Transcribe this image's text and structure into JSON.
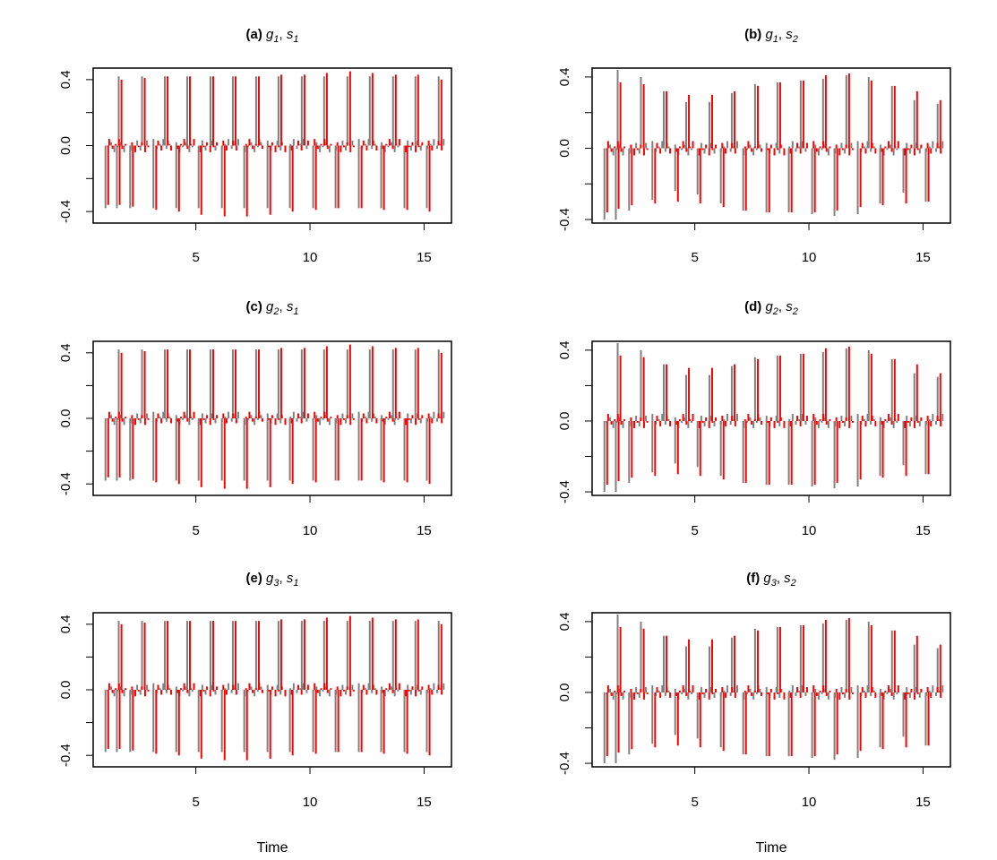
{
  "x_axis_label": "Time",
  "colors": {
    "series_a": "#808080",
    "series_b": "#ff0000",
    "axis": "#000000",
    "background": "#ffffff"
  },
  "chart_data": [
    {
      "type": "bar",
      "title": {
        "label": "(a)",
        "g": "g",
        "g_sub": "1",
        "s": "s",
        "s_sub": "1"
      },
      "xlabel": "Time",
      "ylabel": "",
      "xlim": [
        0.5,
        16.2
      ],
      "ylim": [
        -0.47,
        0.47
      ],
      "x_ticks": [
        5,
        10,
        15
      ],
      "y_ticks": [
        -0.4,
        0.0,
        0.4
      ],
      "y_tick_labels": [
        "-0.4",
        "0.0",
        "0.4"
      ],
      "period": 7,
      "series": [
        {
          "color": "#808080",
          "spike_x": [
            1.04,
            1.62,
            2.64,
            3.64,
            4.62,
            5.64,
            6.62,
            7.64,
            8.62,
            9.64,
            10.62,
            11.64,
            12.62,
            13.64,
            14.62,
            15.64
          ],
          "spike_values": [
            -0.38,
            0.42,
            0.42,
            0.42,
            0.42,
            0.42,
            0.42,
            0.42,
            0.42,
            0.42,
            0.42,
            0.42,
            0.42,
            0.42,
            0.42,
            0.42
          ],
          "mid_spike_values": [
            -0.38,
            -0.38,
            -0.38,
            -0.38,
            -0.38,
            -0.38,
            -0.38,
            -0.38,
            -0.38,
            -0.38,
            -0.38,
            -0.38,
            -0.38,
            -0.38,
            -0.38
          ]
        },
        {
          "color": "#ff0000",
          "spike_x": [
            1.16,
            1.74,
            2.76,
            3.76,
            4.74,
            5.76,
            6.74,
            7.76,
            8.74,
            9.76,
            10.74,
            11.76,
            12.74,
            13.76,
            14.74,
            15.76
          ],
          "spike_values": [
            -0.36,
            0.4,
            0.41,
            0.42,
            0.42,
            0.42,
            0.42,
            0.42,
            0.43,
            0.43,
            0.44,
            0.45,
            0.44,
            0.43,
            0.43,
            0.4
          ],
          "mid_spike_values": [
            -0.36,
            -0.37,
            -0.39,
            -0.4,
            -0.42,
            -0.43,
            -0.43,
            -0.42,
            -0.4,
            -0.39,
            -0.38,
            -0.38,
            -0.39,
            -0.39,
            -0.4
          ]
        }
      ]
    },
    {
      "type": "bar",
      "title": {
        "label": "(b)",
        "g": "g",
        "g_sub": "1",
        "s": "s",
        "s_sub": "2"
      },
      "xlabel": "Time",
      "ylabel": "",
      "xlim": [
        0.5,
        16.2
      ],
      "ylim": [
        -0.42,
        0.45
      ],
      "x_ticks": [
        5,
        10,
        15
      ],
      "y_ticks": [
        -0.4,
        0.0,
        0.4
      ],
      "y_tick_labels": [
        "-0.4",
        "0.0",
        "0.4"
      ],
      "period": 7,
      "series": [
        {
          "color": "#808080",
          "spike_x": [
            1.04,
            1.62,
            2.64,
            3.64,
            4.62,
            5.64,
            6.62,
            7.64,
            8.62,
            9.64,
            10.62,
            11.64,
            12.62,
            13.64,
            14.62,
            15.64
          ],
          "spike_values": [
            -0.4,
            0.44,
            0.4,
            0.32,
            0.26,
            0.26,
            0.31,
            0.36,
            0.37,
            0.38,
            0.39,
            0.41,
            0.4,
            0.35,
            0.27,
            0.25
          ],
          "mid_spike_values": [
            -0.4,
            -0.35,
            -0.29,
            -0.24,
            -0.26,
            -0.31,
            -0.35,
            -0.36,
            -0.36,
            -0.37,
            -0.38,
            -0.37,
            -0.31,
            -0.25,
            -0.3
          ]
        },
        {
          "color": "#ff0000",
          "spike_x": [
            1.16,
            1.74,
            2.76,
            3.76,
            4.74,
            5.76,
            6.74,
            7.76,
            8.74,
            9.76,
            10.74,
            11.76,
            12.74,
            13.76,
            14.74,
            15.76
          ],
          "spike_values": [
            -0.36,
            0.37,
            0.36,
            0.32,
            0.3,
            0.3,
            0.32,
            0.35,
            0.37,
            0.38,
            0.41,
            0.42,
            0.38,
            0.35,
            0.32,
            0.27
          ],
          "mid_spike_values": [
            -0.34,
            -0.32,
            -0.31,
            -0.3,
            -0.31,
            -0.33,
            -0.35,
            -0.36,
            -0.36,
            -0.36,
            -0.35,
            -0.33,
            -0.32,
            -0.31,
            -0.3
          ]
        }
      ]
    },
    {
      "type": "bar",
      "title": {
        "label": "(c)",
        "g": "g",
        "g_sub": "2",
        "s": "s",
        "s_sub": "1"
      },
      "xlabel": "Time",
      "ylabel": "",
      "xlim": [
        0.5,
        16.2
      ],
      "ylim": [
        -0.47,
        0.47
      ],
      "x_ticks": [
        5,
        10,
        15
      ],
      "y_ticks": [
        -0.4,
        0.0,
        0.4
      ],
      "y_tick_labels": [
        "-0.4",
        "0.0",
        "0.4"
      ],
      "period": 7,
      "series": [
        {
          "color": "#808080",
          "spike_x": [
            1.04,
            1.62,
            2.64,
            3.64,
            4.62,
            5.64,
            6.62,
            7.64,
            8.62,
            9.64,
            10.62,
            11.64,
            12.62,
            13.64,
            14.62,
            15.64
          ],
          "spike_values": [
            -0.38,
            0.42,
            0.42,
            0.42,
            0.42,
            0.42,
            0.42,
            0.42,
            0.42,
            0.42,
            0.42,
            0.42,
            0.42,
            0.42,
            0.42,
            0.42
          ],
          "mid_spike_values": [
            -0.38,
            -0.38,
            -0.38,
            -0.38,
            -0.38,
            -0.38,
            -0.38,
            -0.38,
            -0.38,
            -0.38,
            -0.38,
            -0.38,
            -0.38,
            -0.38,
            -0.38
          ]
        },
        {
          "color": "#ff0000",
          "spike_x": [
            1.16,
            1.74,
            2.76,
            3.76,
            4.74,
            5.76,
            6.74,
            7.76,
            8.74,
            9.76,
            10.74,
            11.76,
            12.74,
            13.76,
            14.74,
            15.76
          ],
          "spike_values": [
            -0.36,
            0.4,
            0.41,
            0.42,
            0.42,
            0.42,
            0.42,
            0.42,
            0.43,
            0.43,
            0.44,
            0.45,
            0.44,
            0.43,
            0.43,
            0.4
          ],
          "mid_spike_values": [
            -0.36,
            -0.37,
            -0.39,
            -0.4,
            -0.42,
            -0.43,
            -0.43,
            -0.42,
            -0.4,
            -0.39,
            -0.38,
            -0.38,
            -0.39,
            -0.39,
            -0.4
          ]
        }
      ]
    },
    {
      "type": "bar",
      "title": {
        "label": "(d)",
        "g": "g",
        "g_sub": "2",
        "s": "s",
        "s_sub": "2"
      },
      "xlabel": "Time",
      "ylabel": "",
      "xlim": [
        0.5,
        16.2
      ],
      "ylim": [
        -0.42,
        0.45
      ],
      "x_ticks": [
        5,
        10,
        15
      ],
      "y_ticks": [
        -0.4,
        0.0,
        0.4
      ],
      "y_tick_labels": [
        "-0.4",
        "0.0",
        "0.4"
      ],
      "period": 7,
      "series": [
        {
          "color": "#808080",
          "spike_x": [
            1.04,
            1.62,
            2.64,
            3.64,
            4.62,
            5.64,
            6.62,
            7.64,
            8.62,
            9.64,
            10.62,
            11.64,
            12.62,
            13.64,
            14.62,
            15.64
          ],
          "spike_values": [
            -0.4,
            0.44,
            0.4,
            0.32,
            0.26,
            0.26,
            0.31,
            0.36,
            0.37,
            0.38,
            0.39,
            0.41,
            0.4,
            0.35,
            0.27,
            0.25
          ],
          "mid_spike_values": [
            -0.4,
            -0.35,
            -0.29,
            -0.24,
            -0.26,
            -0.31,
            -0.35,
            -0.36,
            -0.36,
            -0.37,
            -0.38,
            -0.37,
            -0.31,
            -0.25,
            -0.3
          ]
        },
        {
          "color": "#ff0000",
          "spike_x": [
            1.16,
            1.74,
            2.76,
            3.76,
            4.74,
            5.76,
            6.74,
            7.76,
            8.74,
            9.76,
            10.74,
            11.76,
            12.74,
            13.76,
            14.74,
            15.76
          ],
          "spike_values": [
            -0.36,
            0.37,
            0.36,
            0.32,
            0.3,
            0.3,
            0.32,
            0.35,
            0.37,
            0.38,
            0.41,
            0.42,
            0.38,
            0.35,
            0.32,
            0.27
          ],
          "mid_spike_values": [
            -0.34,
            -0.32,
            -0.31,
            -0.3,
            -0.31,
            -0.33,
            -0.35,
            -0.36,
            -0.36,
            -0.36,
            -0.35,
            -0.33,
            -0.32,
            -0.31,
            -0.3
          ]
        }
      ]
    },
    {
      "type": "bar",
      "title": {
        "label": "(e)",
        "g": "g",
        "g_sub": "3",
        "s": "s",
        "s_sub": "1"
      },
      "xlabel": "Time",
      "ylabel": "",
      "xlim": [
        0.5,
        16.2
      ],
      "ylim": [
        -0.47,
        0.47
      ],
      "x_ticks": [
        5,
        10,
        15
      ],
      "y_ticks": [
        -0.4,
        0.0,
        0.4
      ],
      "y_tick_labels": [
        "-0.4",
        "0.0",
        "0.4"
      ],
      "period": 7,
      "series": [
        {
          "color": "#808080",
          "spike_x": [
            1.04,
            1.62,
            2.64,
            3.64,
            4.62,
            5.64,
            6.62,
            7.64,
            8.62,
            9.64,
            10.62,
            11.64,
            12.62,
            13.64,
            14.62,
            15.64
          ],
          "spike_values": [
            -0.38,
            0.42,
            0.42,
            0.42,
            0.42,
            0.42,
            0.42,
            0.42,
            0.42,
            0.42,
            0.42,
            0.42,
            0.42,
            0.42,
            0.42,
            0.42
          ],
          "mid_spike_values": [
            -0.38,
            -0.38,
            -0.38,
            -0.38,
            -0.38,
            -0.38,
            -0.38,
            -0.38,
            -0.38,
            -0.38,
            -0.38,
            -0.38,
            -0.38,
            -0.38,
            -0.38
          ]
        },
        {
          "color": "#ff0000",
          "spike_x": [
            1.16,
            1.74,
            2.76,
            3.76,
            4.74,
            5.76,
            6.74,
            7.76,
            8.74,
            9.76,
            10.74,
            11.76,
            12.74,
            13.76,
            14.74,
            15.76
          ],
          "spike_values": [
            -0.36,
            0.4,
            0.41,
            0.42,
            0.42,
            0.42,
            0.42,
            0.42,
            0.43,
            0.43,
            0.44,
            0.45,
            0.44,
            0.43,
            0.43,
            0.4
          ],
          "mid_spike_values": [
            -0.36,
            -0.37,
            -0.39,
            -0.4,
            -0.42,
            -0.43,
            -0.43,
            -0.42,
            -0.4,
            -0.39,
            -0.38,
            -0.38,
            -0.39,
            -0.39,
            -0.4
          ]
        }
      ]
    },
    {
      "type": "bar",
      "title": {
        "label": "(f)",
        "g": "g",
        "g_sub": "3",
        "s": "s",
        "s_sub": "2"
      },
      "xlabel": "Time",
      "ylabel": "",
      "xlim": [
        0.5,
        16.2
      ],
      "ylim": [
        -0.42,
        0.45
      ],
      "x_ticks": [
        5,
        10,
        15
      ],
      "y_ticks": [
        -0.4,
        0.0,
        0.4
      ],
      "y_tick_labels": [
        "-0.4",
        "0.0",
        "0.4"
      ],
      "period": 7,
      "series": [
        {
          "color": "#808080",
          "spike_x": [
            1.04,
            1.62,
            2.64,
            3.64,
            4.62,
            5.64,
            6.62,
            7.64,
            8.62,
            9.64,
            10.62,
            11.64,
            12.62,
            13.64,
            14.62,
            15.64
          ],
          "spike_values": [
            -0.4,
            0.44,
            0.4,
            0.32,
            0.26,
            0.26,
            0.31,
            0.36,
            0.37,
            0.38,
            0.39,
            0.41,
            0.4,
            0.35,
            0.27,
            0.25
          ],
          "mid_spike_values": [
            -0.4,
            -0.35,
            -0.29,
            -0.24,
            -0.26,
            -0.31,
            -0.35,
            -0.36,
            -0.36,
            -0.37,
            -0.38,
            -0.37,
            -0.31,
            -0.25,
            -0.3
          ]
        },
        {
          "color": "#ff0000",
          "spike_x": [
            1.16,
            1.74,
            2.76,
            3.76,
            4.74,
            5.76,
            6.74,
            7.76,
            8.74,
            9.76,
            10.74,
            11.76,
            12.74,
            13.76,
            14.74,
            15.76
          ],
          "spike_values": [
            -0.36,
            0.37,
            0.36,
            0.32,
            0.3,
            0.3,
            0.32,
            0.35,
            0.37,
            0.38,
            0.41,
            0.42,
            0.38,
            0.35,
            0.32,
            0.27
          ],
          "mid_spike_values": [
            -0.34,
            -0.32,
            -0.31,
            -0.3,
            -0.31,
            -0.33,
            -0.35,
            -0.36,
            -0.36,
            -0.36,
            -0.35,
            -0.33,
            -0.32,
            -0.31,
            -0.3
          ]
        }
      ]
    }
  ]
}
